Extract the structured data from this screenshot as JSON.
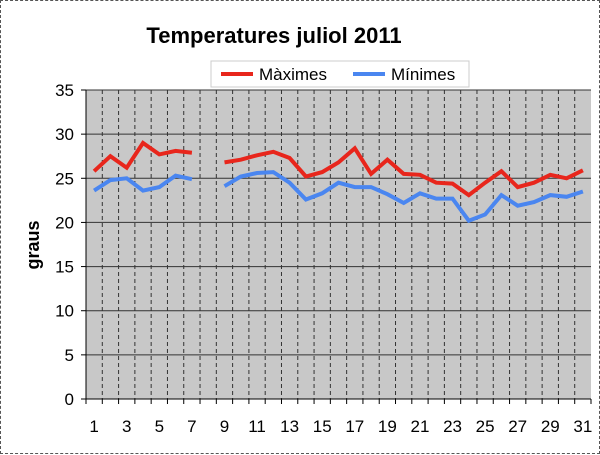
{
  "colors": {
    "max_series": "#e8261c",
    "min_series": "#4a86f0",
    "plot_bg": "#c8c8c8",
    "grid": "#333333"
  },
  "chart_data": {
    "type": "line",
    "title": "Temperatures juliol 2011",
    "xlabel": "",
    "ylabel": "graus",
    "ylim": [
      0,
      35
    ],
    "yticks": [
      0,
      5,
      10,
      15,
      20,
      25,
      30,
      35
    ],
    "x": [
      1,
      2,
      3,
      4,
      5,
      6,
      7,
      8,
      9,
      10,
      11,
      12,
      13,
      14,
      15,
      16,
      17,
      18,
      19,
      20,
      21,
      22,
      23,
      24,
      25,
      26,
      27,
      28,
      29,
      30,
      31
    ],
    "xtick_labels": [
      "1",
      "3",
      "5",
      "7",
      "9",
      "11",
      "13",
      "15",
      "17",
      "19",
      "21",
      "23",
      "25",
      "27",
      "29",
      "31"
    ],
    "grid": true,
    "legend_position": "top",
    "series": [
      {
        "name": "Màximes",
        "values": [
          25.8,
          27.5,
          26.2,
          29.0,
          27.7,
          28.1,
          27.9,
          null,
          26.8,
          27.1,
          27.6,
          28.0,
          27.3,
          25.2,
          25.7,
          26.8,
          28.4,
          25.5,
          27.1,
          25.5,
          25.4,
          24.5,
          24.4,
          23.1,
          24.5,
          25.8,
          24.0,
          24.5,
          25.4,
          25.0,
          25.9
        ]
      },
      {
        "name": "Mínimes",
        "values": [
          23.6,
          24.8,
          25.0,
          23.6,
          24.0,
          25.3,
          24.9,
          null,
          24.1,
          25.2,
          25.6,
          25.7,
          24.5,
          22.6,
          23.3,
          24.5,
          24.0,
          24.0,
          23.2,
          22.2,
          23.3,
          22.7,
          22.7,
          20.2,
          20.9,
          23.1,
          21.9,
          22.3,
          23.1,
          22.9,
          23.5
        ]
      }
    ]
  }
}
